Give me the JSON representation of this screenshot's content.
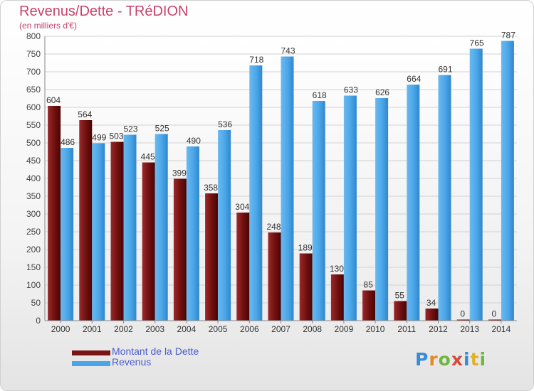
{
  "chart_data": {
    "type": "bar",
    "title": "Revenus/Dette - TRéDION",
    "subtitle": "(en milliers d'€)",
    "categories": [
      "2000",
      "2001",
      "2002",
      "2003",
      "2004",
      "2005",
      "2006",
      "2007",
      "2008",
      "2009",
      "2010",
      "2011",
      "2012",
      "2013",
      "2014"
    ],
    "series": [
      {
        "name": "Montant de la Dette",
        "color": "#7a1414",
        "values": [
          604,
          564,
          503,
          445,
          399,
          358,
          304,
          248,
          189,
          130,
          85,
          55,
          34,
          0,
          0
        ]
      },
      {
        "name": "Revenus",
        "color": "#4aa6e8",
        "values": [
          486,
          499,
          523,
          525,
          490,
          536,
          718,
          743,
          618,
          633,
          626,
          664,
          691,
          765,
          787
        ]
      }
    ],
    "yticks": [
      0,
      50,
      100,
      150,
      200,
      250,
      300,
      350,
      400,
      450,
      500,
      550,
      600,
      650,
      700,
      750,
      800
    ],
    "ylim": [
      0,
      800
    ],
    "grid": true,
    "legend": "bottom-left"
  },
  "legend": {
    "debt_label": "Montant de la Dette",
    "revenue_label": "Revenus"
  },
  "logo": {
    "p": "P",
    "r": "r",
    "o": "o",
    "x": "x",
    "i": "i",
    "t": "t",
    "i2": "i"
  }
}
